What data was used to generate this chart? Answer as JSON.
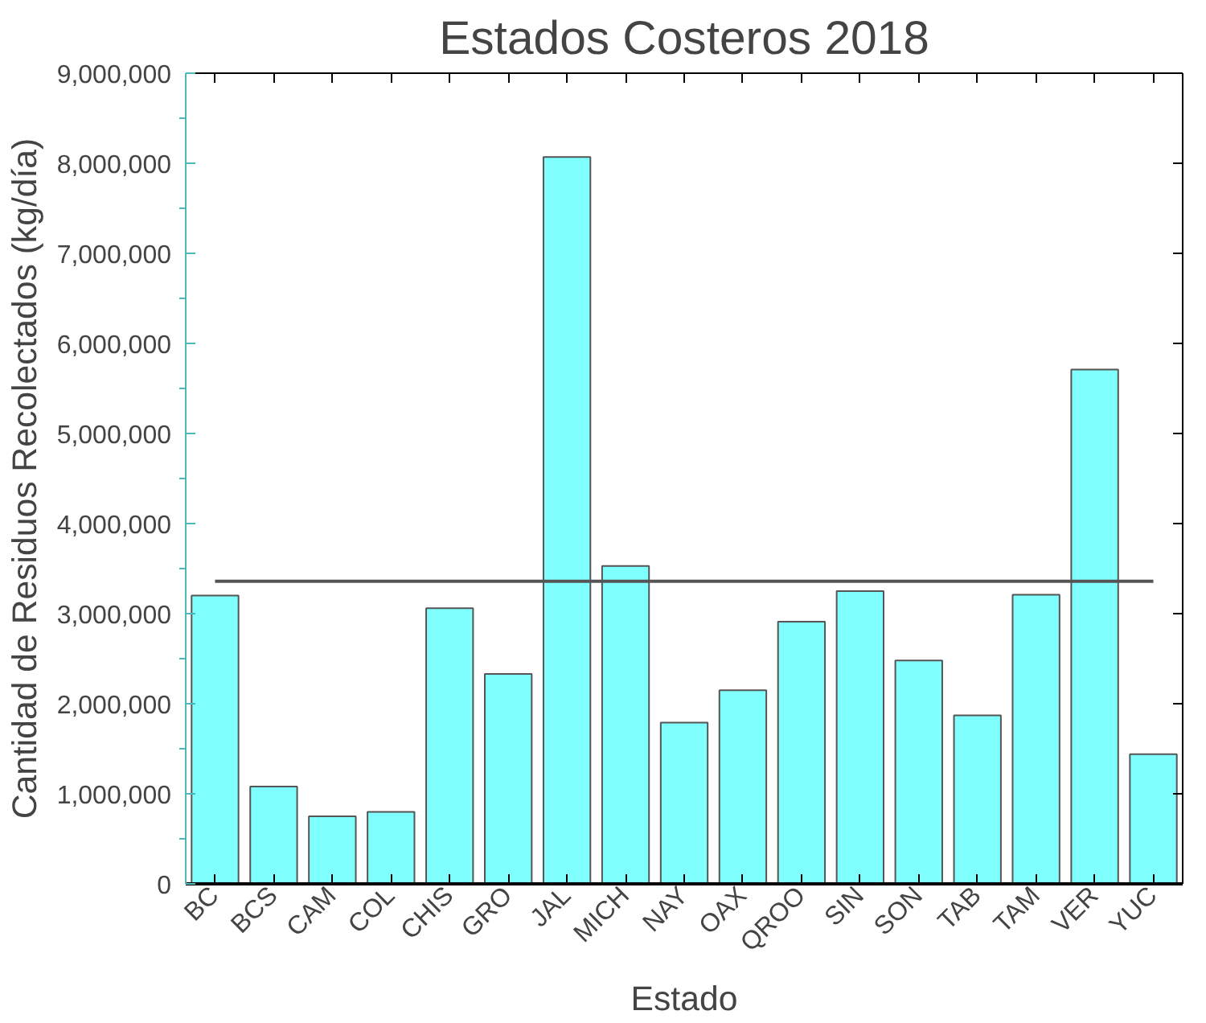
{
  "chart_data": {
    "type": "bar",
    "title": "Estados Costeros 2018",
    "xlabel": "Estado",
    "ylabel": "Cantidad de Residuos Recolectados (kg/día)",
    "categories": [
      "BC",
      "BCS",
      "CAM",
      "COL",
      "CHIS",
      "GRO",
      "JAL",
      "MICH",
      "NAY",
      "OAX",
      "QROO",
      "SIN",
      "SON",
      "TAB",
      "TAM",
      "VER",
      "YUC"
    ],
    "values": [
      3200000,
      1080000,
      750000,
      800000,
      3060000,
      2330000,
      8070000,
      3530000,
      1790000,
      2150000,
      2910000,
      3250000,
      2480000,
      1870000,
      3210000,
      5710000,
      1440000
    ],
    "color": "#80ffff",
    "ylim": [
      0,
      9000000
    ],
    "yticks": [
      {
        "value": 0,
        "label": "0"
      },
      {
        "value": 1000000,
        "label": "1,000,000"
      },
      {
        "value": 2000000,
        "label": "2,000,000"
      },
      {
        "value": 3000000,
        "label": "3,000,000"
      },
      {
        "value": 4000000,
        "label": "4,000,000"
      },
      {
        "value": 5000000,
        "label": "5,000,000"
      },
      {
        "value": 6000000,
        "label": "6,000,000"
      },
      {
        "value": 7000000,
        "label": "7,000,000"
      },
      {
        "value": 8000000,
        "label": "8,000,000"
      },
      {
        "value": 9000000,
        "label": "9,000,000"
      }
    ],
    "ref_lines": [
      {
        "axis": "y",
        "value": 3360000,
        "color": "#555555"
      }
    ],
    "grid": false
  }
}
